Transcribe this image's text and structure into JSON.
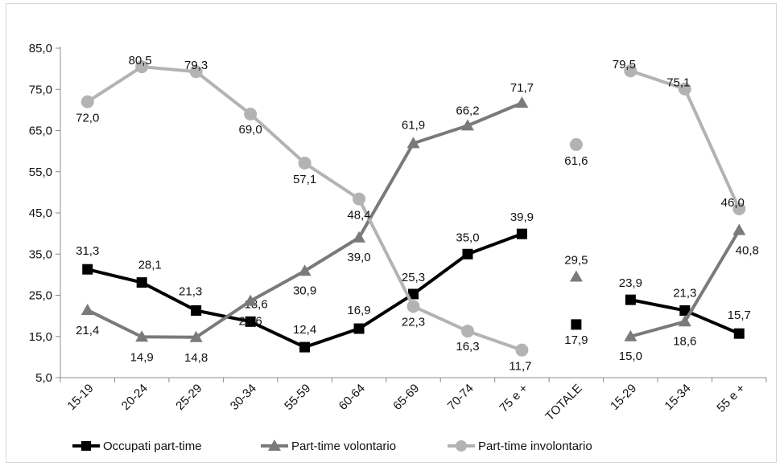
{
  "chart_data": {
    "type": "line",
    "categories": [
      "15-19",
      "20-24",
      "25-29",
      "30-34",
      "55-59",
      "60-64",
      "65-69",
      "70-74",
      "75 e +",
      "TOTALE",
      "15-29",
      "15-34",
      "55 e +"
    ],
    "series": [
      {
        "name": "Occupati part-time",
        "color": "#000000",
        "marker": "square",
        "values": [
          31.3,
          28.1,
          21.3,
          18.6,
          12.4,
          16.9,
          25.3,
          35.0,
          39.9,
          17.9,
          23.9,
          21.3,
          15.7
        ],
        "labels": [
          "31,3",
          "28,1",
          "21,3",
          "18,6",
          "12,4",
          "16,9",
          "25,3",
          "35,0",
          "39,9",
          "17,9",
          "23,9",
          "21,3",
          "15,7"
        ],
        "segments": [
          [
            0,
            8
          ],
          [
            10,
            12
          ]
        ]
      },
      {
        "name": "Part-time volontario",
        "color": "#7a7a7a",
        "marker": "triangle",
        "values": [
          21.4,
          14.9,
          14.8,
          23.6,
          30.9,
          39.0,
          61.9,
          66.2,
          71.7,
          29.5,
          15.0,
          18.6,
          40.8
        ],
        "labels": [
          "21,4",
          "14,9",
          "14,8",
          "23,6",
          "30,9",
          "39,0",
          "61,9",
          "66,2",
          "71,7",
          "29,5",
          "15,0",
          "18,6",
          "40,8"
        ],
        "segments": [
          [
            0,
            8
          ],
          [
            10,
            12
          ]
        ]
      },
      {
        "name": "Part-time involontario",
        "color": "#b3b3b3",
        "marker": "circle",
        "values": [
          72.0,
          80.5,
          79.3,
          69.0,
          57.1,
          48.4,
          22.3,
          16.3,
          11.7,
          61.6,
          79.5,
          75.1,
          46.0
        ],
        "labels": [
          "72,0",
          "80,5",
          "79,3",
          "69,0",
          "57,1",
          "48,4",
          "22,3",
          "16,3",
          "11,7",
          "61,6",
          "79,5",
          "75,1",
          "46,0"
        ],
        "segments": [
          [
            0,
            8
          ],
          [
            10,
            12
          ]
        ]
      }
    ],
    "yticks": [
      "5,0",
      "15,0",
      "25,0",
      "35,0",
      "45,0",
      "55,0",
      "65,0",
      "75,0",
      "85,0"
    ],
    "ylim": [
      5,
      85
    ],
    "grid": false,
    "legend_position": "bottom-left"
  }
}
